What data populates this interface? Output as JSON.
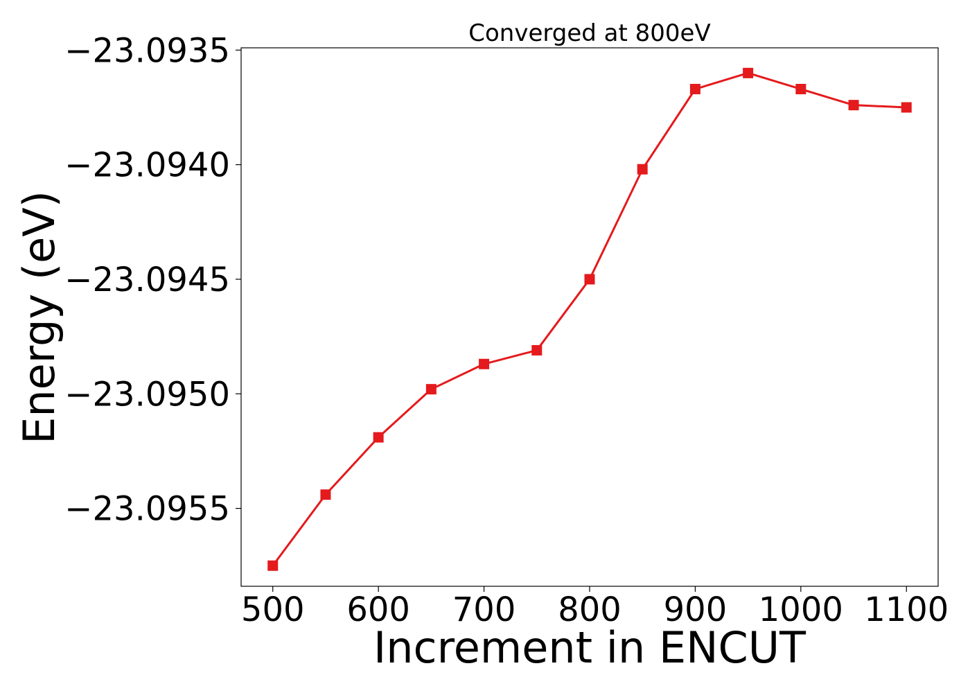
{
  "chart_data": {
    "type": "line",
    "title": "Converged at 800eV",
    "xlabel": "Increment in ENCUT",
    "ylabel": "Energy (eV)",
    "x": [
      500,
      550,
      600,
      650,
      700,
      750,
      800,
      850,
      900,
      950,
      1000,
      1050,
      1100
    ],
    "series": [
      {
        "values": [
          -23.09575,
          -23.09544,
          -23.09519,
          -23.09498,
          -23.09487,
          -23.09481,
          -23.0945,
          -23.09402,
          -23.09367,
          -23.0936,
          -23.09367,
          -23.09374,
          -23.09375
        ],
        "color": "#e41a1c",
        "marker": "square"
      }
    ],
    "xticks": [
      500,
      600,
      700,
      800,
      900,
      1000,
      1100
    ],
    "xtick_labels": [
      "500",
      "600",
      "700",
      "800",
      "900",
      "1000",
      "1100"
    ],
    "yticks": [
      -23.0955,
      -23.095,
      -23.0945,
      -23.094,
      -23.0935
    ],
    "ytick_labels": [
      "−23.0955",
      "−23.0950",
      "−23.0945",
      "−23.0940",
      "−23.0935"
    ],
    "xlim": [
      470,
      1130
    ],
    "ylim": [
      -23.09584,
      -23.09349
    ],
    "grid": false,
    "legend": false
  }
}
